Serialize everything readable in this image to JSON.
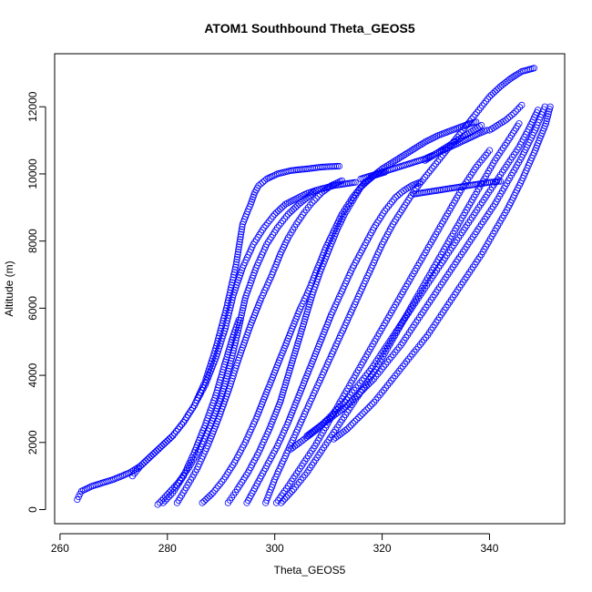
{
  "chart_data": {
    "type": "scatter",
    "title": "ATOM1 Southbound Theta_GEOS5",
    "xlabel": "Theta_GEOS5",
    "ylabel": "Altitude (m)",
    "xlim": [
      259,
      354
    ],
    "ylim": [
      -420,
      13580
    ],
    "xticks": [
      260,
      280,
      300,
      320,
      340
    ],
    "yticks": [
      0,
      2000,
      4000,
      6000,
      8000,
      10000,
      12000
    ],
    "marker": "open-circle",
    "color": "#0000ff",
    "grid": false,
    "legend": "none",
    "series": [
      {
        "x": [
          263.2,
          264,
          266,
          268,
          270,
          273,
          275,
          277,
          279,
          281,
          283,
          285,
          287,
          289,
          291,
          292.8,
          294,
          295.5,
          296.3,
          297,
          298.5,
          300.5,
          303,
          306,
          308.5,
          310.3,
          312
        ],
        "y": [
          300,
          550,
          700,
          800,
          900,
          1100,
          1300,
          1600,
          1900,
          2200,
          2600,
          3100,
          3800,
          4800,
          6000,
          7300,
          8500,
          9100,
          9450,
          9650,
          9850,
          10000,
          10100,
          10150,
          10200,
          10220,
          10230
        ]
      },
      {
        "x": [
          273.5,
          275,
          277,
          279,
          281,
          283,
          285,
          287,
          289,
          290.8,
          292.3,
          294,
          296,
          298,
          300,
          302,
          304.5,
          306,
          307.5,
          309,
          311,
          313,
          315
        ],
        "y": [
          1000,
          1300,
          1600,
          1900,
          2200,
          2600,
          3100,
          3700,
          4500,
          5400,
          6400,
          7200,
          7900,
          8400,
          8800,
          9100,
          9300,
          9420,
          9500,
          9570,
          9650,
          9700,
          9750
        ]
      },
      {
        "x": [
          278.2,
          280,
          282,
          284,
          286,
          288,
          290,
          291.5,
          293,
          294.5,
          296.5,
          298.5,
          300.5,
          302.5,
          304.5,
          306.5,
          307.5
        ],
        "y": [
          150,
          450,
          800,
          1250,
          1800,
          2500,
          3300,
          4200,
          5200,
          6300,
          7200,
          7900,
          8400,
          8800,
          9100,
          9350,
          9500
        ]
      },
      {
        "x": [
          279.2,
          281,
          283,
          285,
          287,
          289,
          290.8,
          292.3,
          293.3
        ],
        "y": [
          200,
          500,
          1000,
          1700,
          2500,
          3400,
          4400,
          5200,
          5650
        ]
      },
      {
        "x": [
          281.8,
          283.5,
          285.5,
          287.5,
          289.5,
          291.5,
          293.5,
          295.5,
          297.5,
          299.5,
          301,
          302.5,
          304,
          305.5,
          307,
          308.8,
          310.5,
          312.5
        ],
        "y": [
          200,
          650,
          1200,
          1900,
          2700,
          3600,
          4600,
          5500,
          6300,
          7000,
          7600,
          8100,
          8500,
          8850,
          9150,
          9450,
          9650,
          9800
        ]
      },
      {
        "x": [
          286.5,
          288.5,
          290.5,
          292.5,
          294.5,
          296.5,
          298.5,
          300.5,
          302.5,
          304.5,
          306.5,
          308,
          309.5,
          311,
          312.5,
          314.5,
          316.5,
          318.5,
          320.5
        ],
        "y": [
          200,
          500,
          900,
          1400,
          2000,
          2700,
          3500,
          4300,
          5100,
          5900,
          6600,
          7200,
          7800,
          8300,
          8800,
          9300,
          9700,
          9950,
          10050
        ]
      },
      {
        "x": [
          291.3,
          293,
          295,
          297,
          299,
          301,
          302.5,
          304,
          305.5,
          307,
          308.5,
          310,
          311.5,
          313,
          314.5,
          316,
          318,
          320,
          322,
          324,
          326,
          328,
          330.5,
          333,
          335.5,
          337.5
        ],
        "y": [
          200,
          600,
          1100,
          1700,
          2400,
          3200,
          4000,
          4800,
          5600,
          6400,
          7100,
          7700,
          8300,
          8800,
          9200,
          9600,
          9900,
          10150,
          10350,
          10550,
          10750,
          10950,
          11150,
          11300,
          11450,
          11550
        ]
      },
      {
        "x": [
          294.8,
          296.5,
          298.5,
          300.5,
          302.5,
          304.5,
          306.5,
          308.5,
          310.5,
          312.5,
          314.5,
          316.5,
          318.5,
          320.5,
          322.5,
          324,
          325.5,
          327
        ],
        "y": [
          200,
          700,
          1300,
          1900,
          2600,
          3400,
          4200,
          5000,
          5800,
          6500,
          7200,
          7800,
          8400,
          8900,
          9300,
          9500,
          9650,
          9750
        ]
      },
      {
        "x": [
          298.3,
          300,
          302,
          304,
          306,
          308,
          310,
          312,
          314,
          316,
          318,
          320,
          322,
          324,
          326,
          328,
          330,
          332,
          334,
          336,
          338,
          340,
          342,
          344,
          346,
          348.3
        ],
        "y": [
          200,
          900,
          1600,
          2300,
          3000,
          3700,
          4400,
          5100,
          5800,
          6500,
          7200,
          7900,
          8500,
          9000,
          9500,
          9900,
          10300,
          10700,
          11100,
          11500,
          11900,
          12300,
          12600,
          12850,
          13050,
          13150
        ]
      },
      {
        "x": [
          300.3,
          302.5,
          305,
          307.5,
          310,
          312.5,
          315,
          317.5,
          320,
          322.5,
          325,
          327.5,
          330,
          332.5,
          335,
          337.5,
          340
        ],
        "y": [
          200,
          700,
          1300,
          1900,
          2600,
          3300,
          4000,
          4700,
          5400,
          6100,
          6800,
          7500,
          8200,
          8900,
          9600,
          10200,
          10700
        ]
      },
      {
        "x": [
          301.2,
          303.5,
          306,
          308.5,
          311,
          313.5,
          316,
          318.5,
          321,
          323.5,
          326,
          328.5,
          331,
          333.5,
          336,
          338.5,
          341,
          343.5,
          345.5
        ],
        "y": [
          200,
          600,
          1100,
          1700,
          2300,
          2900,
          3500,
          4100,
          4800,
          5500,
          6200,
          6900,
          7600,
          8300,
          9000,
          9700,
          10400,
          11000,
          11500
        ]
      },
      {
        "x": [
          303,
          305.5,
          308,
          310.5,
          313,
          315.5,
          318,
          320.5,
          323,
          325.5,
          328,
          330.5,
          333,
          335.5,
          338,
          340.5,
          343,
          345.5,
          347.5,
          349
        ],
        "y": [
          1800,
          2100,
          2400,
          2800,
          3200,
          3700,
          4200,
          4800,
          5400,
          6000,
          6600,
          7200,
          7800,
          8400,
          9000,
          9600,
          10200,
          10800,
          11400,
          11900
        ]
      },
      {
        "x": [
          306,
          308.5,
          311,
          313.5,
          316,
          318.5,
          321,
          323.5,
          326,
          328.5,
          331,
          333.5,
          336,
          338.5,
          341,
          343.5,
          346,
          348.5,
          350.3
        ],
        "y": [
          2200,
          2500,
          2800,
          3100,
          3500,
          3900,
          4400,
          4900,
          5500,
          6100,
          6700,
          7300,
          7900,
          8500,
          9100,
          9800,
          10500,
          11300,
          12000
        ]
      },
      {
        "x": [
          311,
          313.5,
          316,
          318.5,
          321,
          323.5,
          326,
          328.5,
          331,
          333.5,
          336,
          338.5,
          341,
          343.5,
          346,
          348.5,
          350.5,
          351.3
        ],
        "y": [
          2100,
          2400,
          2800,
          3200,
          3700,
          4200,
          4700,
          5200,
          5800,
          6400,
          7000,
          7600,
          8300,
          9000,
          9800,
          10700,
          11500,
          12000
        ]
      },
      {
        "x": [
          326,
          328,
          330,
          332,
          334,
          336,
          338,
          340,
          342
        ],
        "y": [
          9400,
          9450,
          9500,
          9550,
          9600,
          9650,
          9700,
          9750,
          9780
        ]
      },
      {
        "x": [
          328,
          330,
          332,
          334,
          335.5,
          337,
          338.5
        ],
        "y": [
          10400,
          10600,
          10800,
          11000,
          11150,
          11300,
          11450
        ]
      },
      {
        "x": [
          340,
          341.5,
          343,
          344.5,
          346
        ],
        "y": [
          11300,
          11450,
          11600,
          11800,
          12050
        ]
      },
      {
        "x": [
          316,
          318,
          320,
          322,
          324,
          326,
          328,
          330,
          332,
          334,
          336,
          338,
          339.5
        ],
        "y": [
          9850,
          9950,
          10050,
          10150,
          10250,
          10350,
          10450,
          10600,
          10750,
          10900,
          11050,
          11200,
          11300
        ]
      }
    ]
  }
}
